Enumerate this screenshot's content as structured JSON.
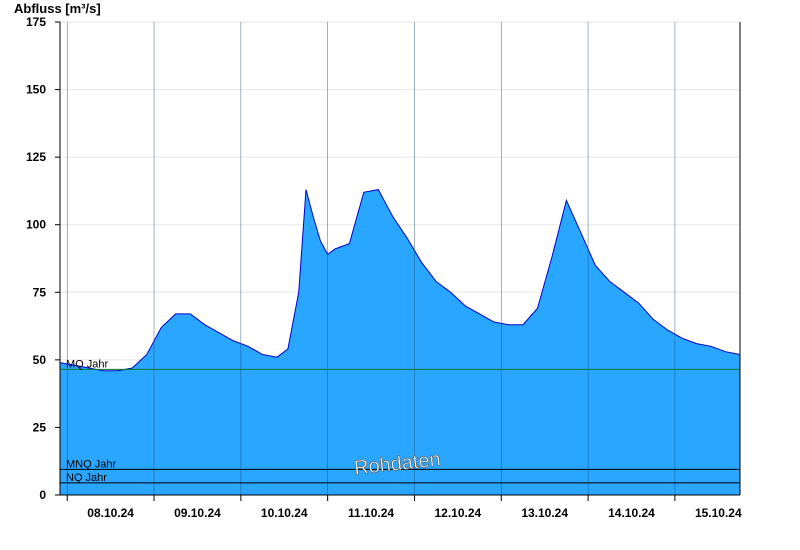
{
  "chart_data": {
    "type": "area",
    "ylabel": "Abfluss [m³/s]",
    "ylim": [
      0,
      175
    ],
    "yticks": [
      0,
      25,
      50,
      75,
      100,
      125,
      150,
      175
    ],
    "xlim": [
      "07.10.24 22:00",
      "15.10.24 18:00"
    ],
    "xtick_labels": [
      "08.10.24",
      "09.10.24",
      "10.10.24",
      "11.10.24",
      "12.10.24",
      "13.10.24",
      "14.10.24",
      "15.10.24"
    ],
    "grid": true,
    "fill_color": "#29a6ff",
    "line_color": "#0000cc",
    "series": [
      {
        "name": "Abfluss",
        "x": [
          "07.10.24 22:00",
          "08.10.24 02:00",
          "08.10.24 06:00",
          "08.10.24 10:00",
          "08.10.24 14:00",
          "08.10.24 18:00",
          "08.10.24 22:00",
          "09.10.24 02:00",
          "09.10.24 06:00",
          "09.10.24 10:00",
          "09.10.24 14:00",
          "09.10.24 18:00",
          "09.10.24 22:00",
          "10.10.24 02:00",
          "10.10.24 06:00",
          "10.10.24 10:00",
          "10.10.24 13:00",
          "10.10.24 16:00",
          "10.10.24 18:00",
          "10.10.24 20:00",
          "10.10.24 22:00",
          "11.10.24 00:00",
          "11.10.24 02:00",
          "11.10.24 06:00",
          "11.10.24 10:00",
          "11.10.24 14:00",
          "11.10.24 18:00",
          "11.10.24 22:00",
          "12.10.24 02:00",
          "12.10.24 06:00",
          "12.10.24 10:00",
          "12.10.24 14:00",
          "12.10.24 18:00",
          "12.10.24 22:00",
          "13.10.24 02:00",
          "13.10.24 06:00",
          "13.10.24 10:00",
          "13.10.24 14:00",
          "13.10.24 18:00",
          "13.10.24 22:00",
          "14.10.24 02:00",
          "14.10.24 06:00",
          "14.10.24 10:00",
          "14.10.24 14:00",
          "14.10.24 18:00",
          "14.10.24 22:00",
          "15.10.24 02:00",
          "15.10.24 06:00",
          "15.10.24 10:00",
          "15.10.24 14:00",
          "15.10.24 18:00"
        ],
        "y": [
          49,
          48,
          47,
          46,
          46,
          47,
          52,
          62,
          67,
          67,
          63,
          60,
          57,
          55,
          52,
          51,
          54,
          75,
          113,
          103,
          94,
          89,
          91,
          93,
          112,
          113,
          103,
          95,
          86,
          79,
          75,
          70,
          67,
          64,
          63,
          63,
          69,
          88,
          109,
          97,
          85,
          79,
          75,
          71,
          65,
          61,
          58,
          56,
          55,
          53,
          52
        ]
      }
    ],
    "reference_lines": [
      {
        "name": "MQ Jahr",
        "value": 46.5,
        "color": "#0a7a2a"
      },
      {
        "name": "MNQ Jahr",
        "value": 9.5,
        "color": "#000000"
      },
      {
        "name": "NQ Jahr",
        "value": 4.5,
        "color": "#000000"
      }
    ],
    "watermark": "Rohdaten"
  }
}
